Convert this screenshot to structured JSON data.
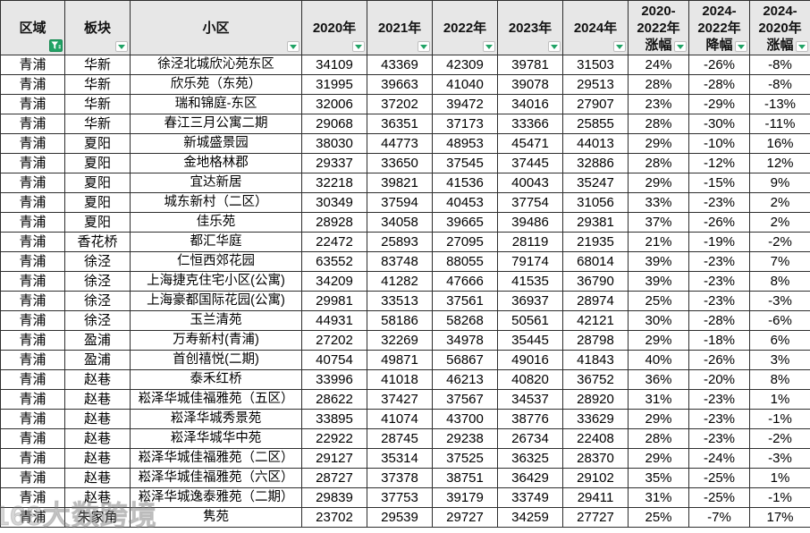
{
  "app": {
    "type": "spreadsheet-table",
    "accent_green": "#21a366",
    "header_bg": "#e7e7e7",
    "grid_border": "#2e2e2e"
  },
  "watermark": {
    "text": "168大数跨境"
  },
  "table": {
    "columns": [
      {
        "key": "region",
        "label": "区域",
        "label_lines": [
          "区域"
        ],
        "filter": "funnel"
      },
      {
        "key": "block",
        "label": "板块",
        "label_lines": [
          "板块"
        ],
        "filter": "arrow"
      },
      {
        "key": "community",
        "label": "小区",
        "label_lines": [
          "小区"
        ],
        "filter": "arrow"
      },
      {
        "key": "y2020",
        "label": "2020年",
        "label_lines": [
          "2020年"
        ],
        "filter": "arrow"
      },
      {
        "key": "y2021",
        "label": "2021年",
        "label_lines": [
          "2021年"
        ],
        "filter": "arrow"
      },
      {
        "key": "y2022",
        "label": "2022年",
        "label_lines": [
          "2022年"
        ],
        "filter": "arrow"
      },
      {
        "key": "y2023",
        "label": "2023年",
        "label_lines": [
          "2023年"
        ],
        "filter": "arrow"
      },
      {
        "key": "y2024",
        "label": "2024年",
        "label_lines": [
          "2024年"
        ],
        "filter": "arrow"
      },
      {
        "key": "rise-2020-2022",
        "label": "2020-2022年涨幅",
        "label_lines": [
          "2020-",
          "2022年",
          "涨幅"
        ],
        "filter": "arrow"
      },
      {
        "key": "drop-2024-2022",
        "label": "2024-2022年降幅",
        "label_lines": [
          "2024-",
          "2022年",
          "降幅"
        ],
        "filter": "arrow"
      },
      {
        "key": "rise-2024-2020",
        "label": "2024-2020年涨幅",
        "label_lines": [
          "2024-",
          "2020年",
          "涨幅"
        ],
        "filter": "arrow"
      }
    ],
    "rows": [
      [
        "青浦",
        "华新",
        "徐泾北城欣沁苑东区",
        "34109",
        "43369",
        "42309",
        "39781",
        "31503",
        "24%",
        "-26%",
        "-8%"
      ],
      [
        "青浦",
        "华新",
        "欣乐苑（东苑）",
        "31995",
        "39663",
        "41040",
        "39078",
        "29513",
        "28%",
        "-28%",
        "-8%"
      ],
      [
        "青浦",
        "华新",
        "瑞和锦庭-东区",
        "32006",
        "37202",
        "39472",
        "34016",
        "27907",
        "23%",
        "-29%",
        "-13%"
      ],
      [
        "青浦",
        "华新",
        "春江三月公寓二期",
        "29068",
        "36351",
        "37173",
        "33366",
        "25855",
        "28%",
        "-30%",
        "-11%"
      ],
      [
        "青浦",
        "夏阳",
        "新城盛景园",
        "38030",
        "44773",
        "48953",
        "45471",
        "44013",
        "29%",
        "-10%",
        "16%"
      ],
      [
        "青浦",
        "夏阳",
        "金地格林郡",
        "29337",
        "33650",
        "37545",
        "37445",
        "32886",
        "28%",
        "-12%",
        "12%"
      ],
      [
        "青浦",
        "夏阳",
        "宜达新居",
        "32218",
        "39821",
        "41536",
        "40043",
        "35247",
        "29%",
        "-15%",
        "9%"
      ],
      [
        "青浦",
        "夏阳",
        "城东新村（二区）",
        "30349",
        "37594",
        "40453",
        "37754",
        "31056",
        "33%",
        "-23%",
        "2%"
      ],
      [
        "青浦",
        "夏阳",
        "佳乐苑",
        "28928",
        "34058",
        "39665",
        "39486",
        "29381",
        "37%",
        "-26%",
        "2%"
      ],
      [
        "青浦",
        "香花桥",
        "都汇华庭",
        "22472",
        "25893",
        "27095",
        "28119",
        "21935",
        "21%",
        "-19%",
        "-2%"
      ],
      [
        "青浦",
        "徐泾",
        "仁恒西郊花园",
        "63552",
        "83748",
        "88055",
        "79174",
        "68014",
        "39%",
        "-23%",
        "7%"
      ],
      [
        "青浦",
        "徐泾",
        "上海捷克住宅小区(公寓)",
        "34209",
        "41282",
        "47666",
        "41535",
        "36790",
        "39%",
        "-23%",
        "8%"
      ],
      [
        "青浦",
        "徐泾",
        "上海豪都国际花园(公寓)",
        "29981",
        "33513",
        "37561",
        "36937",
        "28974",
        "25%",
        "-23%",
        "-3%"
      ],
      [
        "青浦",
        "徐泾",
        "玉兰清苑",
        "44931",
        "58186",
        "58268",
        "50561",
        "42121",
        "30%",
        "-28%",
        "-6%"
      ],
      [
        "青浦",
        "盈浦",
        "万寿新村(青浦)",
        "27202",
        "32269",
        "34978",
        "35445",
        "28798",
        "29%",
        "-18%",
        "6%"
      ],
      [
        "青浦",
        "盈浦",
        "首创禧悦(二期)",
        "40754",
        "49871",
        "56867",
        "49016",
        "41843",
        "40%",
        "-26%",
        "3%"
      ],
      [
        "青浦",
        "赵巷",
        "泰禾红桥",
        "33996",
        "41018",
        "46213",
        "40820",
        "36752",
        "36%",
        "-20%",
        "8%"
      ],
      [
        "青浦",
        "赵巷",
        "崧泽华城佳福雅苑（五区）",
        "28622",
        "37427",
        "37567",
        "34537",
        "28920",
        "31%",
        "-23%",
        "1%"
      ],
      [
        "青浦",
        "赵巷",
        "崧泽华城秀景苑",
        "33895",
        "41074",
        "43700",
        "38776",
        "33629",
        "29%",
        "-23%",
        "-1%"
      ],
      [
        "青浦",
        "赵巷",
        "崧泽华城华中苑",
        "22922",
        "28745",
        "29238",
        "26734",
        "22408",
        "28%",
        "-23%",
        "-2%"
      ],
      [
        "青浦",
        "赵巷",
        "崧泽华城佳福雅苑（二区）",
        "29127",
        "35314",
        "37525",
        "36325",
        "28370",
        "29%",
        "-24%",
        "-3%"
      ],
      [
        "青浦",
        "赵巷",
        "崧泽华城佳福雅苑（六区）",
        "28727",
        "37378",
        "38751",
        "36429",
        "29102",
        "35%",
        "-25%",
        "1%"
      ],
      [
        "青浦",
        "赵巷",
        "崧泽华城逸泰雅苑（二期）",
        "29839",
        "37753",
        "39179",
        "33749",
        "29411",
        "31%",
        "-25%",
        "-1%"
      ],
      [
        "青浦",
        "朱家角",
        "隽苑",
        "23702",
        "29539",
        "29727",
        "34259",
        "27727",
        "25%",
        "-7%",
        "17%"
      ]
    ]
  }
}
